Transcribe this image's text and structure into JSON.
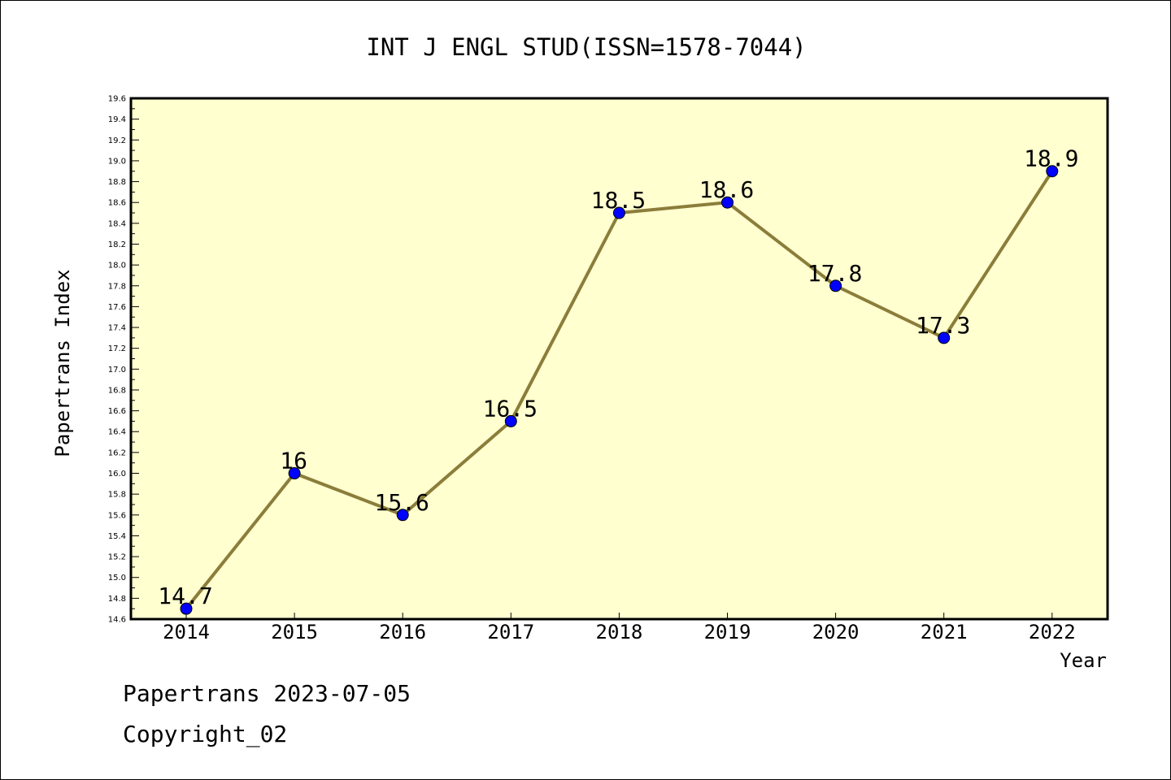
{
  "chart_data": {
    "type": "line",
    "title": "INT J ENGL STUD(ISSN=1578-7044)",
    "xlabel": "Year",
    "ylabel": "Papertrans Index",
    "x": [
      "2014",
      "2015",
      "2016",
      "2017",
      "2018",
      "2019",
      "2020",
      "2021",
      "2022"
    ],
    "series": [
      {
        "values": [
          14.7,
          16.0,
          15.6,
          16.5,
          18.5,
          18.6,
          17.8,
          17.3,
          18.9
        ],
        "point_labels": [
          "14.7",
          "16",
          "15.6",
          "16.5",
          "18.5",
          "18.6",
          "17.8",
          "17.3",
          "18.9"
        ]
      }
    ],
    "ylim": [
      14.6,
      19.6
    ],
    "y_major_step": 0.2,
    "y_tick_labels": [
      "14.6",
      "14.8",
      "15.0",
      "15.2",
      "15.4",
      "15.6",
      "15.8",
      "16.0",
      "16.2",
      "16.4",
      "16.6",
      "16.8",
      "17.0",
      "17.2",
      "17.4",
      "17.6",
      "17.8",
      "18.0",
      "18.2",
      "18.4",
      "18.6",
      "18.8",
      "19.0",
      "19.2",
      "19.4",
      "19.6"
    ],
    "grid": false,
    "legend": "none",
    "colors": {
      "plot_background": "#ffffd0",
      "line": "#8b7d3a",
      "marker": "#0000ff",
      "axis": "#000000"
    }
  },
  "footer": {
    "line1": "Papertrans 2023-07-05",
    "line2": "Copyright_02"
  }
}
